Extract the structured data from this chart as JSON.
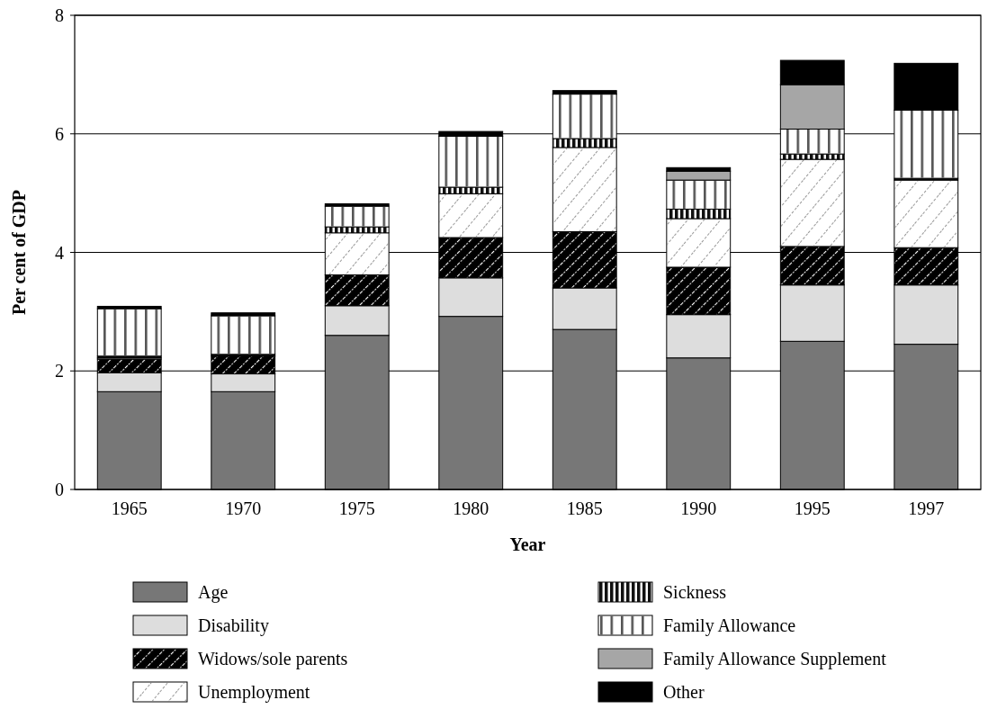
{
  "chart_data": {
    "type": "bar",
    "stacked": true,
    "xlabel": "Year",
    "ylabel": "Per cent of GDP",
    "categories": [
      "1965",
      "1970",
      "1975",
      "1980",
      "1985",
      "1990",
      "1995",
      "1997"
    ],
    "series": [
      {
        "name": "Age",
        "color": "#777777",
        "values": [
          1.65,
          1.65,
          2.6,
          2.92,
          2.7,
          2.22,
          2.5,
          2.45
        ]
      },
      {
        "name": "Disability",
        "color": "#dddddd",
        "values": [
          0.32,
          0.3,
          0.5,
          0.65,
          0.7,
          0.73,
          0.95,
          1.0
        ]
      },
      {
        "name": "Widows/sole parents",
        "color": "#000000",
        "values": [
          0.23,
          0.3,
          0.52,
          0.68,
          0.95,
          0.8,
          0.65,
          0.63
        ]
      },
      {
        "name": "Unemployment",
        "color": "#ffffff",
        "values": [
          0.02,
          0,
          0.71,
          0.74,
          1.42,
          0.82,
          1.47,
          1.14
        ]
      },
      {
        "name": "Sickness",
        "color": "#111111",
        "values": [
          0.03,
          0.03,
          0.1,
          0.11,
          0.15,
          0.16,
          0.09,
          0.03
        ]
      },
      {
        "name": "Family Allowance",
        "color": "#ffffff",
        "values": [
          0.8,
          0.65,
          0.35,
          0.86,
          0.75,
          0.49,
          0.42,
          1.15
        ]
      },
      {
        "name": "Family Allowance Supplement",
        "color": "#a6a6a6",
        "values": [
          0,
          0,
          0,
          0,
          0,
          0.15,
          0.75,
          0
        ]
      },
      {
        "name": "Other",
        "color": "#000000",
        "values": [
          0.04,
          0.05,
          0.04,
          0.08,
          0.06,
          0.06,
          0.41,
          0.79
        ]
      }
    ],
    "ylim": [
      0,
      8
    ],
    "yticks": [
      0,
      2,
      4,
      6,
      8
    ],
    "grid": "y",
    "legend": "bottom"
  }
}
